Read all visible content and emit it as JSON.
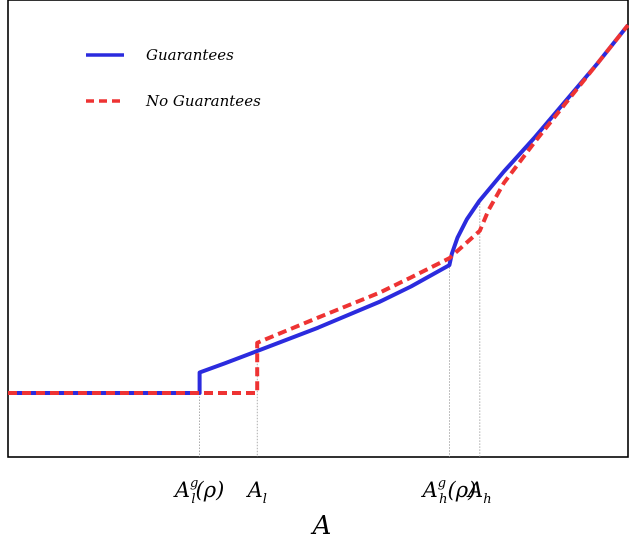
{
  "chart_data": {
    "type": "line",
    "title": "",
    "xlabel": "A",
    "ylabel": "",
    "xlim": [
      0,
      100
    ],
    "ylim": [
      0,
      100
    ],
    "grid": false,
    "legend_position": "top-left",
    "ticks": [
      {
        "base": "A",
        "sub": "l",
        "sup": "g",
        "arg": "(ρ)",
        "x": 30.9
      },
      {
        "base": "A",
        "sub": "l",
        "sup": "",
        "arg": "",
        "x": 40.2
      },
      {
        "base": "A",
        "sub": "h",
        "sup": "g",
        "arg": "(ρ)",
        "x": 71.2
      },
      {
        "base": "A",
        "sub": "h",
        "sup": "",
        "arg": "",
        "x": 76.1
      }
    ],
    "series": [
      {
        "name": "Guarantees",
        "color": "#2b2bde",
        "style": "solid",
        "points": [
          [
            0,
            14
          ],
          [
            30.9,
            14
          ],
          [
            30.9,
            18.5
          ],
          [
            35,
            20.5
          ],
          [
            40.2,
            23.2
          ],
          [
            50,
            28.3
          ],
          [
            60,
            34
          ],
          [
            65,
            37.3
          ],
          [
            71.2,
            42
          ],
          [
            71.6,
            44.5
          ],
          [
            72.5,
            48
          ],
          [
            74,
            52
          ],
          [
            76,
            56
          ],
          [
            80,
            62.5
          ],
          [
            85,
            70
          ],
          [
            90,
            78
          ],
          [
            95,
            86
          ],
          [
            100,
            94.5
          ]
        ]
      },
      {
        "name": "No Guarantees",
        "color": "#ee3333",
        "style": "dashed",
        "points": [
          [
            0,
            14
          ],
          [
            40.2,
            14
          ],
          [
            40.2,
            25
          ],
          [
            50,
            30.5
          ],
          [
            60,
            36
          ],
          [
            65,
            39.3
          ],
          [
            71.2,
            43.5
          ],
          [
            76.1,
            49.5
          ],
          [
            77.5,
            54
          ],
          [
            80,
            60
          ],
          [
            85,
            69
          ],
          [
            90,
            77.5
          ],
          [
            95,
            86
          ],
          [
            100,
            94.5
          ]
        ]
      }
    ]
  }
}
